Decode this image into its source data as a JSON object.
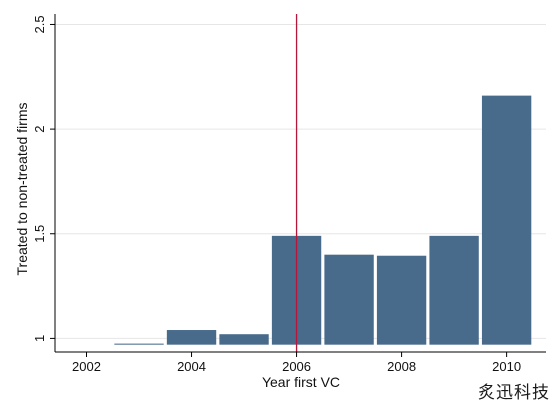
{
  "chart_data": {
    "type": "bar",
    "xlabel": "Year first VC",
    "ylabel": "Treated to non-treated firms",
    "x": [
      2003,
      2004,
      2005,
      2006,
      2007,
      2008,
      2009,
      2010
    ],
    "values": [
      0.975,
      1.04,
      1.02,
      1.49,
      1.4,
      1.395,
      1.49,
      2.16
    ],
    "bar_base": 0.97,
    "xlim": [
      2001.4,
      2010.75
    ],
    "ylim": [
      0.935,
      2.55
    ],
    "x_ticks": [
      2002,
      2004,
      2006,
      2008,
      2010
    ],
    "x_tick_labels": [
      "2002",
      "2004",
      "2006",
      "2008",
      "2010"
    ],
    "y_ticks": [
      1,
      1.5,
      2,
      2.5
    ],
    "y_tick_labels": [
      "1",
      "1.5",
      "2",
      "2.5"
    ],
    "reference_line_x": 2006,
    "grid": "horizontal",
    "legend": "none",
    "colors": {
      "bar": "#486a8b",
      "reference_line": "#b5163a",
      "grid": "#e6e6e6",
      "axis": "#000000"
    }
  },
  "watermark": "炙迅科技"
}
